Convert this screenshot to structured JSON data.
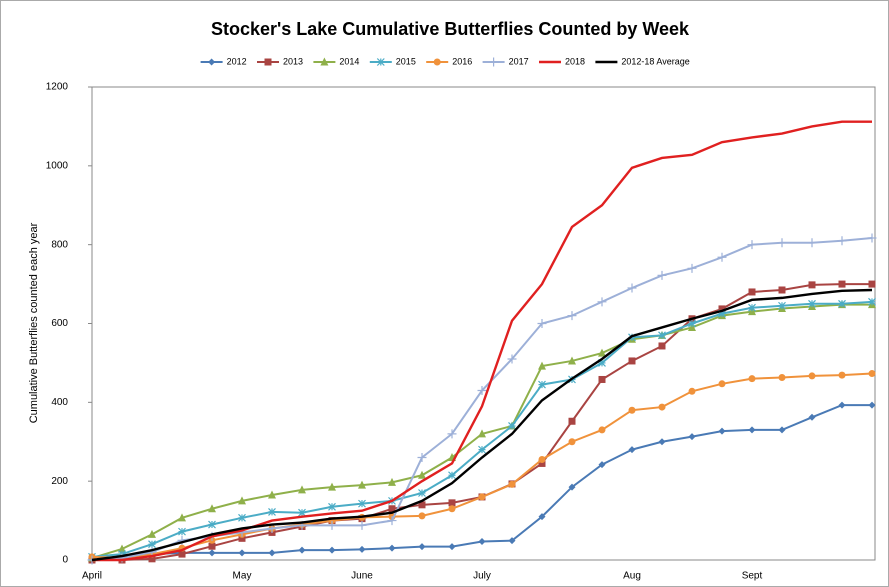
{
  "chart_data": {
    "type": "line",
    "title": "Stocker's Lake Cumulative Butterflies Counted by Week",
    "ylabel": "Cumulative Butterflies counted each year",
    "categories": [
      "April",
      null,
      null,
      null,
      null,
      "May",
      null,
      null,
      null,
      "June",
      null,
      null,
      null,
      "July",
      null,
      null,
      null,
      null,
      "Aug",
      null,
      null,
      null,
      "Sept",
      null,
      null,
      null,
      null
    ],
    "ylim": [
      0,
      1200
    ],
    "yticks": [
      0,
      200,
      400,
      600,
      800,
      1000,
      1200
    ],
    "grid": false,
    "legend": "top",
    "series": [
      {
        "name": "2012",
        "color": "#4a7ab5",
        "marker": "diamond",
        "values": [
          0,
          8,
          15,
          18,
          18,
          18,
          18,
          25,
          25,
          27,
          30,
          34,
          34,
          47,
          49,
          110,
          185,
          242,
          280,
          300,
          313,
          327,
          330,
          330,
          362,
          393,
          393
        ]
      },
      {
        "name": "2013",
        "color": "#a94442",
        "marker": "square",
        "values": [
          0,
          0,
          3,
          15,
          35,
          55,
          70,
          85,
          100,
          105,
          130,
          140,
          145,
          160,
          193,
          245,
          352,
          458,
          505,
          543,
          612,
          637,
          680,
          685,
          698,
          700,
          700
        ]
      },
      {
        "name": "2014",
        "color": "#8fb04a",
        "marker": "triangle",
        "values": [
          5,
          28,
          65,
          107,
          130,
          150,
          165,
          178,
          185,
          190,
          197,
          215,
          260,
          320,
          340,
          492,
          505,
          525,
          560,
          570,
          590,
          620,
          630,
          638,
          643,
          648,
          648
        ]
      },
      {
        "name": "2015",
        "color": "#4bacc6",
        "marker": "star",
        "values": [
          8,
          15,
          40,
          72,
          90,
          107,
          122,
          120,
          135,
          143,
          150,
          170,
          215,
          280,
          340,
          445,
          458,
          500,
          565,
          570,
          600,
          625,
          640,
          645,
          650,
          650,
          655
        ]
      },
      {
        "name": "2016",
        "color": "#f0923b",
        "marker": "circle",
        "values": [
          8,
          5,
          15,
          30,
          50,
          65,
          80,
          90,
          100,
          108,
          110,
          112,
          130,
          160,
          192,
          255,
          300,
          330,
          380,
          388,
          428,
          447,
          460,
          463,
          467,
          469,
          473
        ]
      },
      {
        "name": "2017",
        "color": "#9db0d8",
        "marker": "plus",
        "values": [
          0,
          5,
          20,
          50,
          60,
          70,
          80,
          88,
          88,
          88,
          100,
          260,
          320,
          430,
          510,
          600,
          620,
          655,
          690,
          722,
          740,
          768,
          800,
          805,
          805,
          810,
          817
        ]
      },
      {
        "name": "2018",
        "color": "#e02020",
        "marker": "none",
        "values": [
          0,
          0,
          10,
          25,
          60,
          75,
          100,
          110,
          118,
          125,
          150,
          200,
          245,
          390,
          607,
          700,
          845,
          900,
          995,
          1020,
          1028,
          1060,
          1072,
          1082,
          1100,
          1112,
          1112
        ]
      },
      {
        "name": "2012-18 Average",
        "color": "#000000",
        "marker": "none",
        "values": [
          0,
          10,
          25,
          45,
          65,
          80,
          90,
          95,
          105,
          110,
          120,
          150,
          195,
          260,
          320,
          405,
          460,
          510,
          568,
          590,
          612,
          632,
          660,
          665,
          675,
          683,
          685
        ]
      }
    ]
  }
}
